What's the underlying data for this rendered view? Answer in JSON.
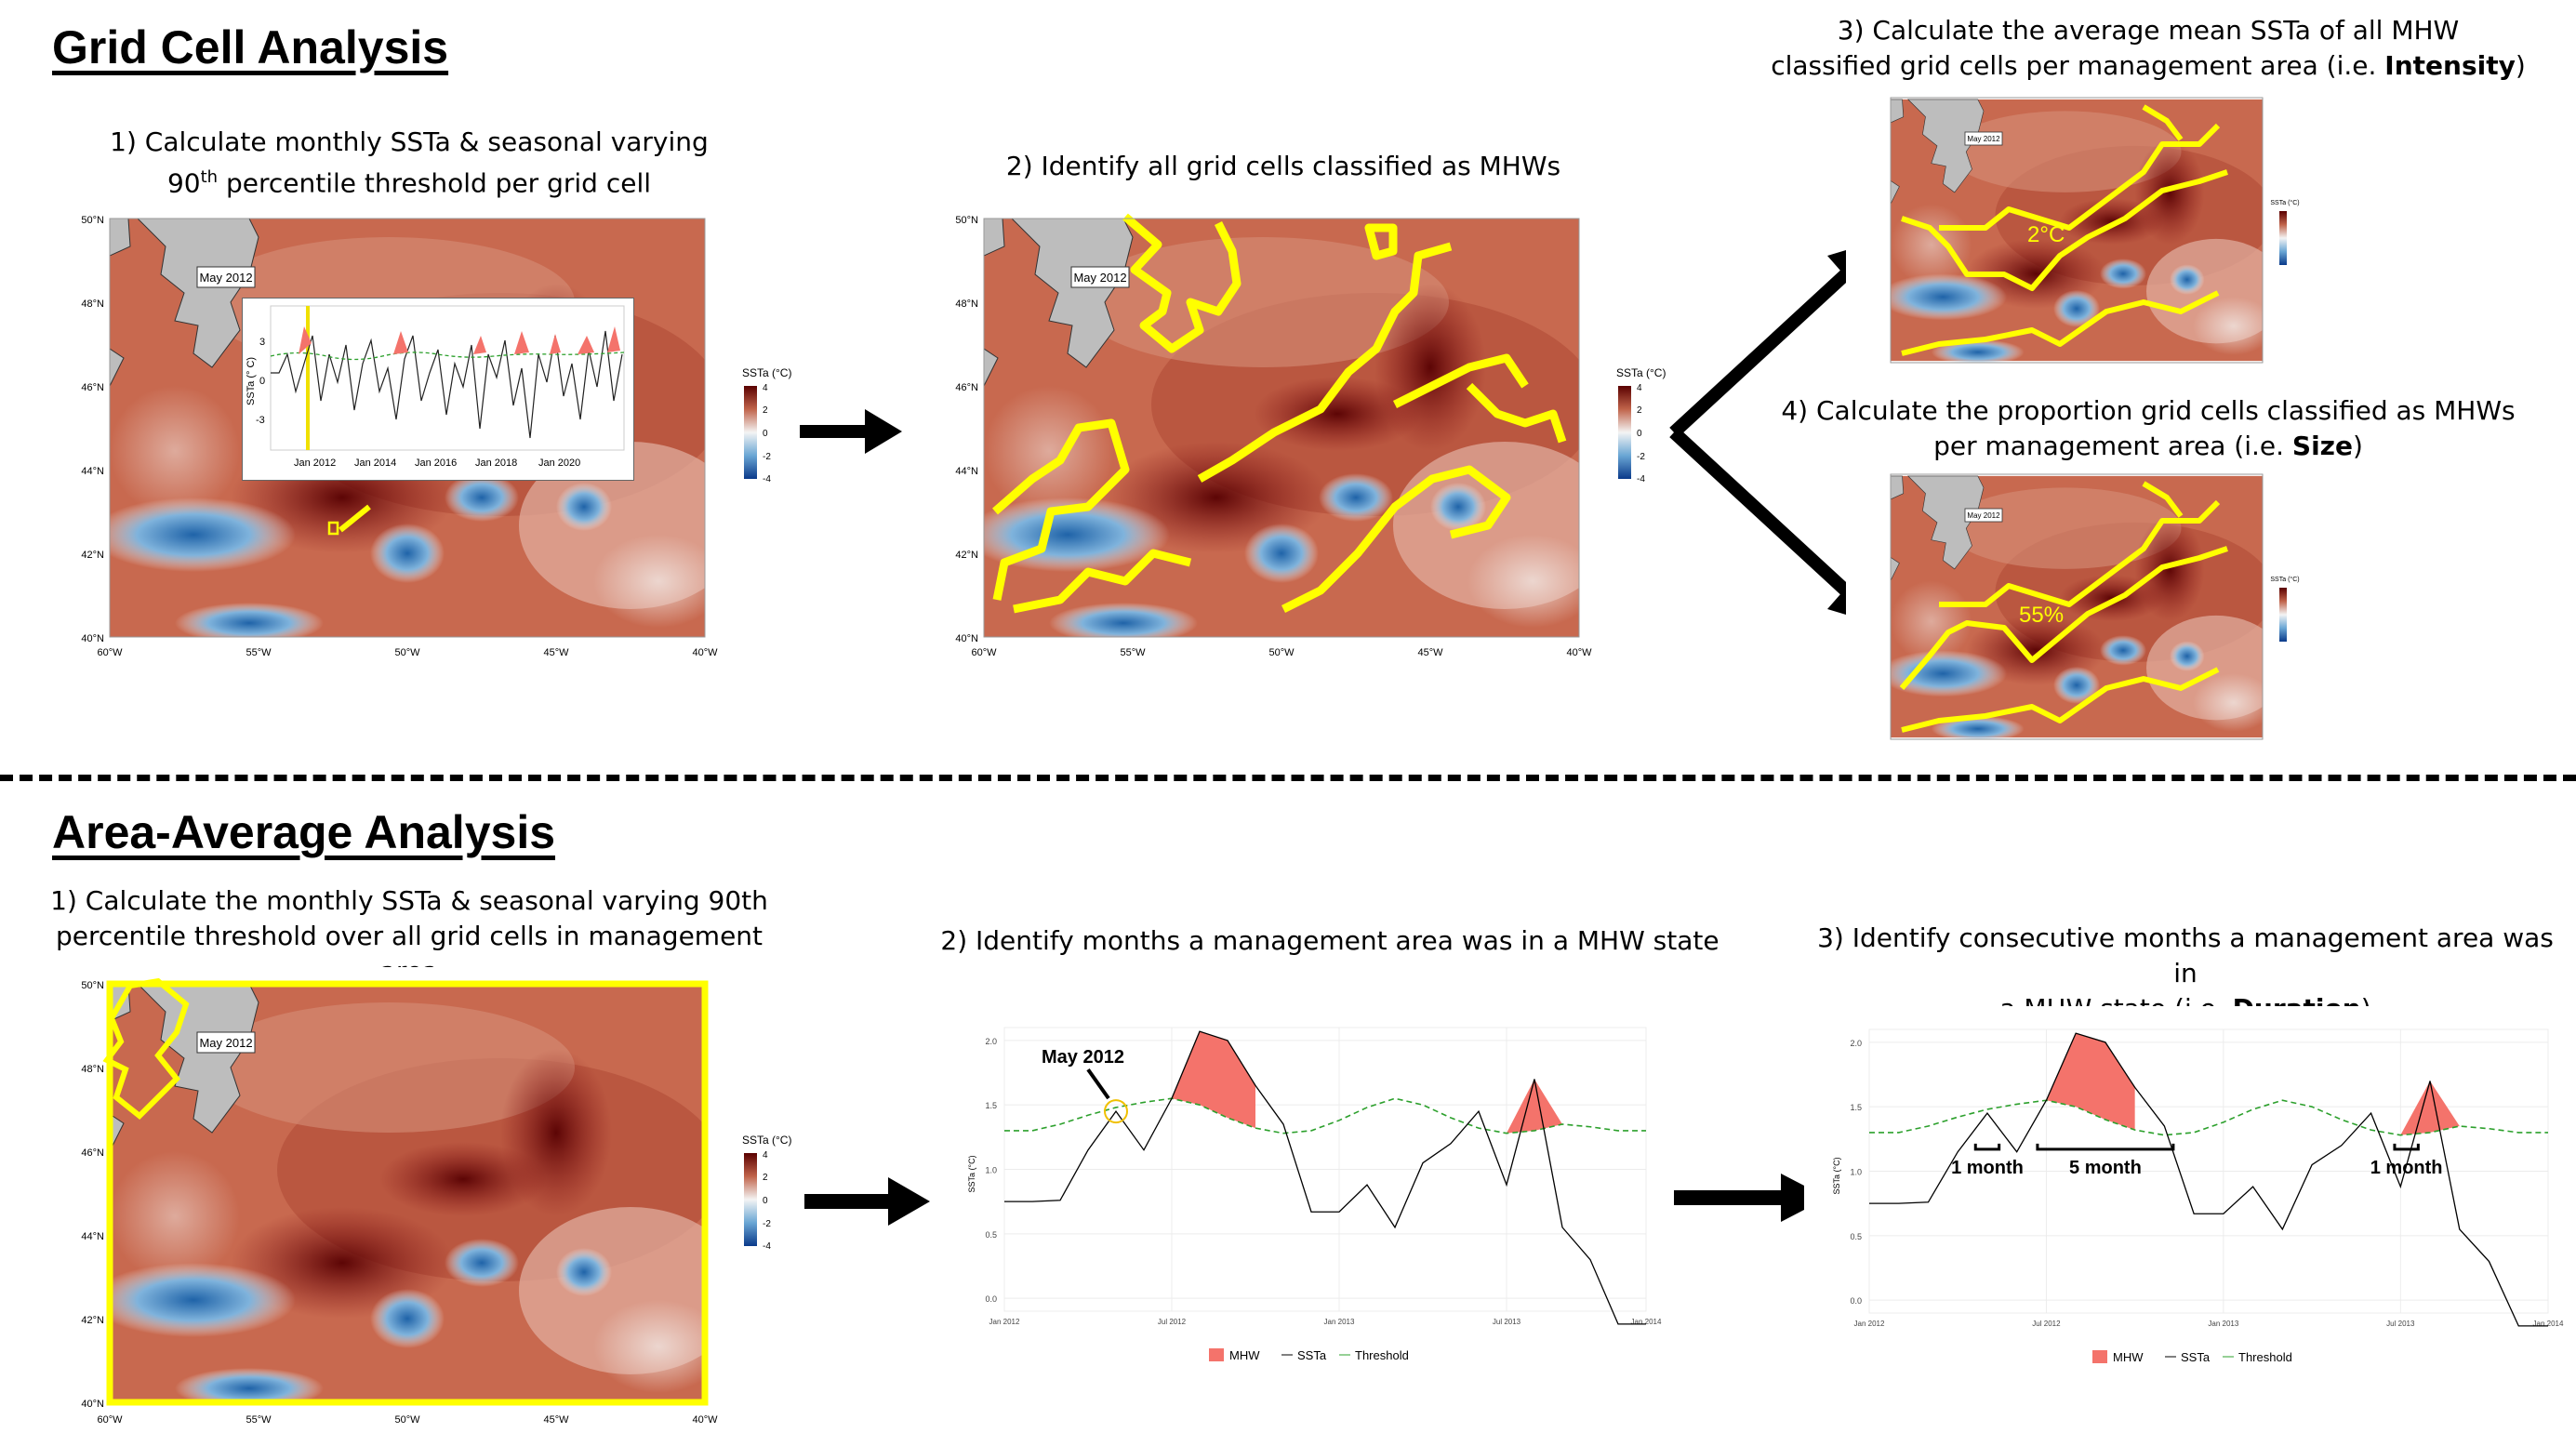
{
  "sections": {
    "grid_title": "Grid Cell Analysis",
    "area_title": "Area-Average Analysis"
  },
  "grid_steps": {
    "s1_line1": "1) Calculate monthly SSTa & seasonal varying",
    "s1_line2a": "90",
    "s1_line2sup": "th",
    "s1_line2b": " percentile threshold per grid cell",
    "s2": "2) Identify all grid cells classified as MHWs",
    "s3_line1": "3) Calculate the average mean SSTa of all MHW",
    "s3_line2a": "classified grid cells per management area (i.e. ",
    "s3_bold": "Intensity",
    "s3_line2b": ")",
    "s4_line1": "4) Calculate the proportion grid cells classified as MHWs",
    "s4_line2a": "per management area (i.e. ",
    "s4_bold": "Size",
    "s4_line2b": ")"
  },
  "area_steps": {
    "s1_line1": "1) Calculate the monthly SSTa & seasonal varying  90th",
    "s1_line2": "percentile threshold over all grid cells in management area",
    "s2": "2) Identify months a management area was in a MHW state",
    "s3_line1": "3) Identify consecutive months a management area was in",
    "s3_line2a": "a MHW state (i.e. ",
    "s3_bold": "Duration",
    "s3_line2b": ")"
  },
  "map": {
    "date_label": "May 2012",
    "lat_labels": [
      "50°N",
      "48°N",
      "46°N",
      "44°N",
      "42°N",
      "40°N"
    ],
    "lon_labels": [
      "60°W",
      "55°W",
      "50°W",
      "45°W",
      "40°W"
    ],
    "legend_title": "SSTa (°C)",
    "legend_ticks": [
      "4",
      "2",
      "0",
      "-2",
      "-4"
    ],
    "colors": {
      "warm": "#8b1a1a",
      "mid": "#c0634a",
      "neutral": "#f4f4f4",
      "cool": "#3a7fb8",
      "land": "#bdbdbd",
      "mhw_outline": "#ffff00"
    }
  },
  "inset": {
    "ylabel": "SSTa (° C)",
    "y_ticks": [
      "3",
      "0",
      "-3"
    ],
    "x_ticks": [
      "Jan 2012",
      "Jan 2014",
      "Jan 2016",
      "Jan 2018",
      "Jan 2020"
    ]
  },
  "annotations": {
    "intensity_value": "2°C",
    "size_value": "55%",
    "may_label": "May 2012",
    "one_month_a": "1 month",
    "five_month": "5 month",
    "one_month_b": "1 month"
  },
  "timeseries": {
    "ylabel": "SSTa (°C)",
    "y_ticks": [
      "2.0",
      "1.5",
      "1.0",
      "0.5",
      "0.0"
    ],
    "x_ticks": [
      "Jan 2012",
      "Jul 2012",
      "Jan 2013",
      "Jul 2013",
      "Jan 2014"
    ],
    "legend": {
      "mhw": "MHW",
      "ssta": "SSTa",
      "threshold": "Threshold"
    },
    "colors": {
      "mhw": "#f4736b",
      "ssta": "#000000",
      "threshold": "#2ca02c"
    }
  },
  "chart_data": {
    "type": "line",
    "xlabel": "",
    "ylabel": "SSTa (°C)",
    "ylim": [
      -0.1,
      2.1
    ],
    "x": [
      "Jan 2012",
      "Feb 2012",
      "Mar 2012",
      "Apr 2012",
      "May 2012",
      "Jun 2012",
      "Jul 2012",
      "Aug 2012",
      "Sep 2012",
      "Oct 2012",
      "Nov 2012",
      "Dec 2012",
      "Jan 2013",
      "Feb 2013",
      "Mar 2013",
      "Apr 2013",
      "May 2013",
      "Jun 2013",
      "Jul 2013",
      "Aug 2013",
      "Sep 2013",
      "Oct 2013",
      "Nov 2013",
      "Dec 2013"
    ],
    "series": [
      {
        "name": "SSTa",
        "values": [
          0.75,
          0.75,
          0.76,
          1.15,
          1.45,
          1.15,
          1.55,
          2.07,
          2.0,
          1.65,
          1.35,
          0.67,
          0.67,
          0.88,
          0.55,
          1.05,
          1.2,
          1.45,
          0.88,
          1.7,
          0.55,
          0.3,
          -0.2,
          -0.2
        ]
      },
      {
        "name": "Threshold",
        "values": [
          1.3,
          1.3,
          1.35,
          1.42,
          1.48,
          1.52,
          1.55,
          1.5,
          1.4,
          1.32,
          1.28,
          1.3,
          1.38,
          1.48,
          1.55,
          1.5,
          1.4,
          1.32,
          1.28,
          1.3,
          1.35,
          1.33,
          1.3,
          1.3
        ]
      }
    ]
  }
}
